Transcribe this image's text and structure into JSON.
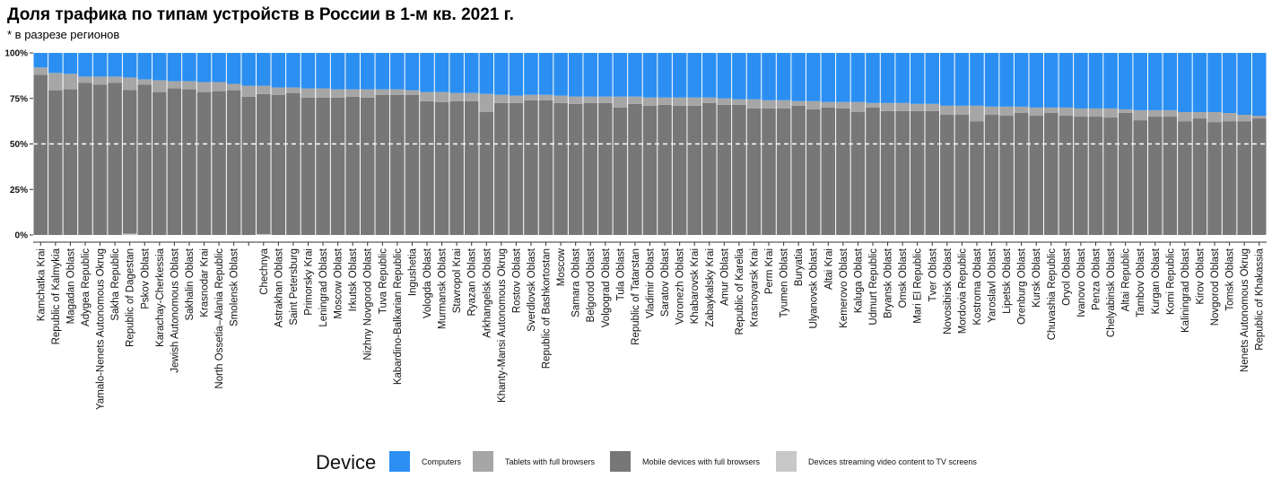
{
  "title": "Доля трафика по типам устройств в России в 1-м кв. 2021 г.",
  "subtitle": "* в разрезе регионов",
  "legend": {
    "title": "Device",
    "items": [
      {
        "label": "Computers",
        "color": "#2b8ff2"
      },
      {
        "label": "Tablets with full browsers",
        "color": "#a6a6a6"
      },
      {
        "label": "Mobile devices with full browsers",
        "color": "#777777"
      },
      {
        "label": "Devices streaming video content to TV screens",
        "color": "#c8c8c8"
      }
    ]
  },
  "chart_data": {
    "type": "bar",
    "stacked": true,
    "orientation": "vertical",
    "ylim": [
      0,
      100
    ],
    "yticks": [
      "0%",
      "25%",
      "50%",
      "75%",
      "100%"
    ],
    "reference_line": {
      "y": 50,
      "style": "dashed",
      "color": "#ffffff"
    },
    "grid": false,
    "legend_position": "bottom",
    "categories": [
      "Kamchatka Krai",
      "Republic of Kalmykia",
      "Magadan Oblast",
      "Adygea Republic",
      "Yamalo-Nenets Autonomous Okrug",
      "Sakha Republic",
      "Republic of Dagestan",
      "Pskov Oblast",
      "Karachay-Cherkessia",
      "Jewish Autonomous Oblast",
      "Sakhalin Oblast",
      "Krasnodar Krai",
      "North Ossetia–Alania Republic",
      "Smolensk Oblast",
      "",
      "Chechnya",
      "Astrakhan Oblast",
      "Saint Petersburg",
      "Primorsky Krai",
      "Leningrad Oblast",
      "Moscow Oblast",
      "Irkutsk Oblast",
      "Nizhny Novgorod Oblast",
      "Tuva Republic",
      "Kabardino-Balkarian Republic",
      "Ingushetia",
      "Vologda Oblast",
      "Murmansk Oblast",
      "Stavropol Krai",
      "Ryazan Oblast",
      "Arkhangelsk Oblast",
      "Khanty-Mansi Autonomous Okrug",
      "Rostov Oblast",
      "Sverdlovsk Oblast",
      "Republic of Bashkortostan",
      "Moscow",
      "Samara Oblast",
      "Belgorod Oblast",
      "Volgograd Oblast",
      "Tula Oblast",
      "Republic of Tatarstan",
      "Vladimir Oblast",
      "Saratov Oblast",
      "Voronezh Oblast",
      "Khabarovsk Krai",
      "Zabaykalsky Krai",
      "Amur Oblast",
      "Republic of Karelia",
      "Krasnoyarsk Krai",
      "Perm Krai",
      "Tyumen Oblast",
      "Buryatia",
      "Ulyanovsk Oblast",
      "Altai Krai",
      "Kemerovo Oblast",
      "Kaluga Oblast",
      "Udmurt Republic",
      "Bryansk Oblast",
      "Omsk Oblast",
      "Mari El Republic",
      "Tver Oblast",
      "Novosibirsk Oblast",
      "Mordovia Republic",
      "Kostroma Oblast",
      "Yaroslavl Oblast",
      "Lipetsk Oblast",
      "Orenburg Oblast",
      "Kursk Oblast",
      "Chuvashia Republic",
      "Oryol Oblast",
      "Ivanovo Oblast",
      "Penza Oblast",
      "Chelyabinsk Oblast",
      "Altai Republic",
      "Tambov Oblast",
      "Kurgan Oblast",
      "Komi Republic",
      "Kaliningrad Oblast",
      "Kirov Oblast",
      "Novgorod Oblast",
      "Tomsk Oblast",
      "Nenets Autonomous Okrug",
      "Republic of Khakassia"
    ],
    "series": [
      {
        "name": "Devices streaming video content to TV screens",
        "values": [
          0,
          0,
          0,
          0,
          0,
          0,
          0.7,
          0,
          0,
          0,
          0,
          0,
          0,
          0,
          0,
          0.4,
          0,
          0,
          0,
          0,
          0,
          0,
          0,
          0,
          0,
          0,
          0,
          0,
          0,
          0,
          0,
          0,
          0,
          0,
          0,
          0,
          0,
          0,
          0,
          0,
          0,
          0,
          0,
          0,
          0,
          0,
          0,
          0,
          0,
          0,
          0,
          0,
          0,
          0,
          0,
          0,
          0,
          0,
          0,
          0,
          0,
          0,
          0,
          0,
          0,
          0,
          0,
          0,
          0,
          0,
          0,
          0,
          0,
          0,
          0,
          0,
          0,
          0,
          0,
          0,
          0,
          0,
          0
        ]
      },
      {
        "name": "Mobile devices with full browsers",
        "values": [
          88,
          79.5,
          80,
          83.5,
          82.5,
          83.5,
          79,
          82.5,
          78.5,
          80.5,
          80,
          78.5,
          79,
          79.5,
          76,
          77,
          77,
          78,
          75.5,
          75.5,
          75.5,
          76,
          75.5,
          77,
          77,
          77,
          73.5,
          73,
          73.5,
          73.5,
          67.5,
          72.5,
          72.5,
          74,
          74,
          72.5,
          72,
          72.5,
          72.5,
          70,
          72,
          71,
          71.5,
          71,
          71,
          72.5,
          71.5,
          71.5,
          69.5,
          69.5,
          69.5,
          71,
          69,
          70,
          69.5,
          67.5,
          70,
          68,
          68,
          68,
          68,
          66,
          66,
          62.5,
          66,
          65.5,
          67,
          65.5,
          67,
          65.5,
          65,
          65,
          64.5,
          67,
          63,
          65,
          65,
          62.5,
          64,
          62,
          62.5,
          62.5,
          64
        ]
      },
      {
        "name": "Tablets with full browsers",
        "values": [
          4,
          9.5,
          8.5,
          3.5,
          4.5,
          3.5,
          6.8,
          3,
          6.5,
          4,
          4.5,
          5.5,
          5,
          3.5,
          6,
          4.6,
          4,
          3,
          5,
          5,
          4.5,
          4,
          4.5,
          3,
          3,
          2.5,
          5,
          5.5,
          4.5,
          4.5,
          10,
          4.5,
          4,
          3,
          3,
          4,
          4,
          3.5,
          3.5,
          6,
          4,
          4.5,
          4,
          4.5,
          4.5,
          3,
          3.5,
          3,
          5,
          4.5,
          4.5,
          2.5,
          4.5,
          3,
          3.5,
          5.5,
          2.5,
          4.5,
          4.5,
          4,
          4,
          5,
          5,
          8.5,
          4.5,
          5,
          3.5,
          4.5,
          3,
          4.5,
          4.5,
          4.5,
          5,
          2,
          5.5,
          3.5,
          3.5,
          5,
          3.5,
          5.5,
          4.5,
          3.5,
          1.5
        ]
      },
      {
        "name": "Computers",
        "values": [
          8,
          11,
          11.5,
          13,
          13,
          13,
          13.5,
          14.5,
          15,
          15.5,
          15.5,
          16,
          16,
          17,
          18,
          18,
          19,
          19,
          19.5,
          19.5,
          20,
          20,
          20,
          20,
          20,
          20.5,
          21.5,
          21.5,
          22,
          22,
          22.5,
          23,
          23.5,
          23,
          23,
          23.5,
          24,
          24,
          24,
          24,
          24,
          24.5,
          24.5,
          24.5,
          24.5,
          24.5,
          25,
          25.5,
          25.5,
          26,
          26,
          26.5,
          26.5,
          27,
          27,
          27,
          27.5,
          27.5,
          27.5,
          28,
          28,
          29,
          29,
          29,
          29.5,
          29.5,
          29.5,
          30,
          30,
          30,
          30.5,
          30.5,
          30.5,
          31,
          31.5,
          31.5,
          31.5,
          32.5,
          32.5,
          32.5,
          33,
          34,
          34.5
        ]
      }
    ]
  }
}
